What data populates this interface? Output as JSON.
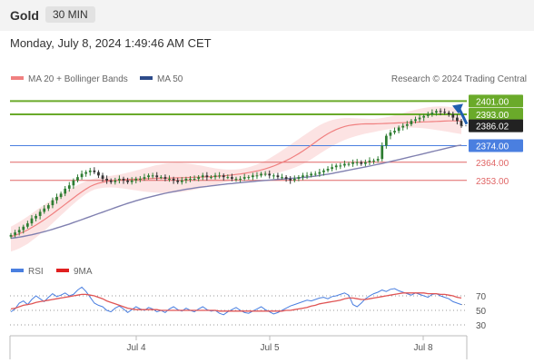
{
  "header": {
    "symbol": "Gold",
    "timeframe": "30 MIN"
  },
  "datetime": "Monday, July 8, 2024 1:49:46 AM CET",
  "legend": {
    "ma20_bb": "MA 20 + Bollinger Bands",
    "ma50": "MA 50"
  },
  "watermark": "Research © 2024 Trading Central",
  "rsi_legend": {
    "rsi": "RSI",
    "ma9": "9MA"
  },
  "colors": {
    "bullish": "#2e7d32",
    "bearish": "#333333",
    "ma20": "#f08080",
    "ma50": "#8080b0",
    "resistance": "#6aaa2a",
    "current": "#222222",
    "pivot": "#4a7fe0",
    "support": "#e06666",
    "arrow": "#1f5fb0",
    "rsi": "#4a7fe0",
    "rsi_ma": "#e05555"
  },
  "chart_data": [
    {
      "type": "candlestick",
      "title": "Gold 30 MIN",
      "x_tick_labels": [
        "Jul 4",
        "Jul 5",
        "Jul 8"
      ],
      "ylim": [
        2315,
        2410
      ],
      "levels": [
        {
          "label": "2401.00",
          "value": 2401.0,
          "kind": "resistance"
        },
        {
          "label": "2393.00",
          "value": 2393.0,
          "kind": "resistance"
        },
        {
          "label": "2386.02",
          "value": 2386.02,
          "kind": "current"
        },
        {
          "label": "2374.00",
          "value": 2374.0,
          "kind": "pivot"
        },
        {
          "label": "2364.00",
          "value": 2364.0,
          "kind": "support"
        },
        {
          "label": "2353.00",
          "value": 2353.0,
          "kind": "support"
        }
      ],
      "close": [
        2320.0,
        2321.5,
        2323.0,
        2325.0,
        2327.0,
        2330.0,
        2331.5,
        2334.0,
        2336.0,
        2338.0,
        2341.0,
        2343.0,
        2345.0,
        2348.0,
        2350.0,
        2353.0,
        2355.0,
        2357.0,
        2358.0,
        2359.0,
        2358.0,
        2356.0,
        2354.0,
        2353.0,
        2352.0,
        2353.0,
        2354.0,
        2353.0,
        2352.0,
        2353.0,
        2354.0,
        2354.0,
        2355.0,
        2356.0,
        2356.0,
        2355.0,
        2355.0,
        2354.0,
        2354.0,
        2353.0,
        2352.0,
        2353.0,
        2354.0,
        2354.0,
        2354.0,
        2355.0,
        2356.0,
        2355.0,
        2355.0,
        2356.0,
        2356.0,
        2355.0,
        2355.0,
        2354.0,
        2354.0,
        2354.0,
        2355.0,
        2355.0,
        2356.0,
        2356.0,
        2357.0,
        2357.0,
        2356.0,
        2356.0,
        2355.0,
        2355.0,
        2354.0,
        2353.0,
        2354.0,
        2355.0,
        2356.0,
        2356.0,
        2357.0,
        2357.0,
        2358.0,
        2359.0,
        2360.0,
        2361.0,
        2362.0,
        2362.0,
        2363.0,
        2363.0,
        2364.0,
        2364.0,
        2363.0,
        2364.0,
        2365.0,
        2365.0,
        2366.0,
        2374.0,
        2380.0,
        2382.0,
        2383.0,
        2385.0,
        2386.0,
        2387.0,
        2389.0,
        2390.0,
        2391.0,
        2392.0,
        2393.0,
        2394.0,
        2395.0,
        2394.5,
        2394.0,
        2393.0,
        2391.0,
        2389.0,
        2386.02
      ],
      "ma20": [
        2319.0,
        2319.8,
        2320.7,
        2321.8,
        2323.0,
        2324.5,
        2326.0,
        2327.6,
        2329.2,
        2331.0,
        2332.8,
        2334.7,
        2336.6,
        2338.5,
        2340.5,
        2342.4,
        2344.3,
        2346.1,
        2347.8,
        2349.3,
        2350.5,
        2351.3,
        2351.9,
        2352.4,
        2352.8,
        2353.1,
        2353.3,
        2353.5,
        2353.6,
        2353.7,
        2353.8,
        2353.9,
        2354.0,
        2354.1,
        2354.2,
        2354.3,
        2354.3,
        2354.4,
        2354.5,
        2354.5,
        2354.6,
        2354.6,
        2354.7,
        2354.8,
        2354.9,
        2355.0,
        2355.1,
        2355.2,
        2355.3,
        2355.4,
        2355.6,
        2355.8,
        2356.0,
        2356.3,
        2356.6,
        2356.9,
        2357.3,
        2357.7,
        2358.2,
        2358.7,
        2359.3,
        2360.0,
        2360.8,
        2361.7,
        2362.7,
        2363.8,
        2365.0,
        2366.3,
        2367.7,
        2369.2,
        2370.8,
        2372.5,
        2374.3,
        2376.2,
        2378.0,
        2379.7,
        2381.2,
        2382.6,
        2383.8,
        2384.8,
        2385.6,
        2386.2,
        2386.6,
        2386.9,
        2387.1,
        2387.2,
        2387.2,
        2387.2,
        2387.3,
        2387.4,
        2387.5,
        2387.6,
        2387.7,
        2387.8,
        2387.9,
        2388.0,
        2388.1,
        2388.2,
        2388.3,
        2388.4,
        2388.5,
        2388.6,
        2388.7,
        2388.8,
        2388.9,
        2389.0,
        2389.0,
        2389.0,
        2389.0
      ],
      "ma50": [
        2318.0,
        2318.3,
        2318.7,
        2319.1,
        2319.6,
        2320.1,
        2320.7,
        2321.3,
        2322.0,
        2322.7,
        2323.4,
        2324.2,
        2325.0,
        2325.8,
        2326.6,
        2327.5,
        2328.4,
        2329.3,
        2330.2,
        2331.1,
        2332.0,
        2332.9,
        2333.8,
        2334.7,
        2335.6,
        2336.5,
        2337.4,
        2338.3,
        2339.1,
        2339.9,
        2340.7,
        2341.4,
        2342.1,
        2342.8,
        2343.4,
        2344.0,
        2344.6,
        2345.2,
        2345.7,
        2346.2,
        2346.7,
        2347.2,
        2347.6,
        2348.0,
        2348.4,
        2348.8,
        2349.1,
        2349.4,
        2349.7,
        2350.0,
        2350.3,
        2350.6,
        2350.9,
        2351.1,
        2351.4,
        2351.6,
        2351.9,
        2352.1,
        2352.3,
        2352.6,
        2352.8,
        2353.0,
        2353.2,
        2353.4,
        2353.6,
        2353.8,
        2354.0,
        2354.2,
        2354.4,
        2354.6,
        2354.8,
        2355.0,
        2355.3,
        2355.6,
        2356.0,
        2356.4,
        2356.8,
        2357.2,
        2357.7,
        2358.2,
        2358.7,
        2359.2,
        2359.7,
        2360.2,
        2360.7,
        2361.2,
        2361.7,
        2362.2,
        2362.7,
        2363.2,
        2363.8,
        2364.4,
        2365.0,
        2365.6,
        2366.2,
        2366.8,
        2367.4,
        2368.0,
        2368.6,
        2369.2,
        2369.8,
        2370.4,
        2371.0,
        2371.6,
        2372.2,
        2372.8,
        2373.4,
        2374.0,
        2374.3
      ],
      "forecast_arrow": {
        "from": 2386.02,
        "to": 2401.0
      }
    },
    {
      "type": "line",
      "title": "RSI",
      "y_ticks": [
        30,
        50,
        70
      ],
      "ylim": [
        20,
        90
      ],
      "series": [
        {
          "name": "RSI",
          "values": [
            48,
            52,
            60,
            63,
            58,
            65,
            70,
            66,
            62,
            68,
            73,
            69,
            71,
            74,
            70,
            72,
            78,
            82,
            76,
            68,
            60,
            57,
            55,
            50,
            48,
            53,
            56,
            52,
            47,
            51,
            55,
            52,
            50,
            54,
            52,
            48,
            50,
            47,
            52,
            55,
            51,
            49,
            53,
            50,
            48,
            52,
            55,
            51,
            49,
            50,
            46,
            44,
            48,
            51,
            54,
            50,
            47,
            46,
            49,
            52,
            55,
            51,
            48,
            45,
            47,
            50,
            53,
            56,
            58,
            60,
            62,
            64,
            63,
            65,
            67,
            68,
            66,
            69,
            70,
            72,
            74,
            71,
            58,
            55,
            60,
            66,
            70,
            73,
            75,
            78,
            76,
            79,
            80,
            77,
            75,
            73,
            71,
            74,
            72,
            70,
            68,
            72,
            73,
            70,
            68,
            66,
            62,
            60,
            58
          ]
        },
        {
          "name": "9MA",
          "values": [
            52,
            53,
            55,
            57,
            58,
            59,
            61,
            62,
            63,
            64,
            65,
            66,
            67,
            68,
            69,
            70,
            71,
            72,
            72,
            71,
            70,
            68,
            66,
            63,
            61,
            59,
            57,
            55,
            53,
            52,
            51,
            51,
            51,
            51,
            51,
            51,
            50,
            50,
            50,
            50,
            50,
            50,
            50,
            50,
            50,
            50,
            50,
            50,
            50,
            50,
            49,
            49,
            49,
            49,
            49,
            49,
            49,
            49,
            49,
            49,
            49,
            49,
            49,
            49,
            49,
            49,
            50,
            50,
            51,
            52,
            53,
            54,
            56,
            57,
            59,
            60,
            61,
            62,
            63,
            64,
            66,
            67,
            67,
            66,
            65,
            65,
            66,
            67,
            68,
            69,
            70,
            71,
            72,
            73,
            74,
            74,
            74,
            74,
            74,
            74,
            73,
            73,
            73,
            72,
            72,
            71,
            70,
            68,
            67
          ]
        }
      ],
      "ref_lines": [
        70,
        50,
        30
      ]
    }
  ]
}
